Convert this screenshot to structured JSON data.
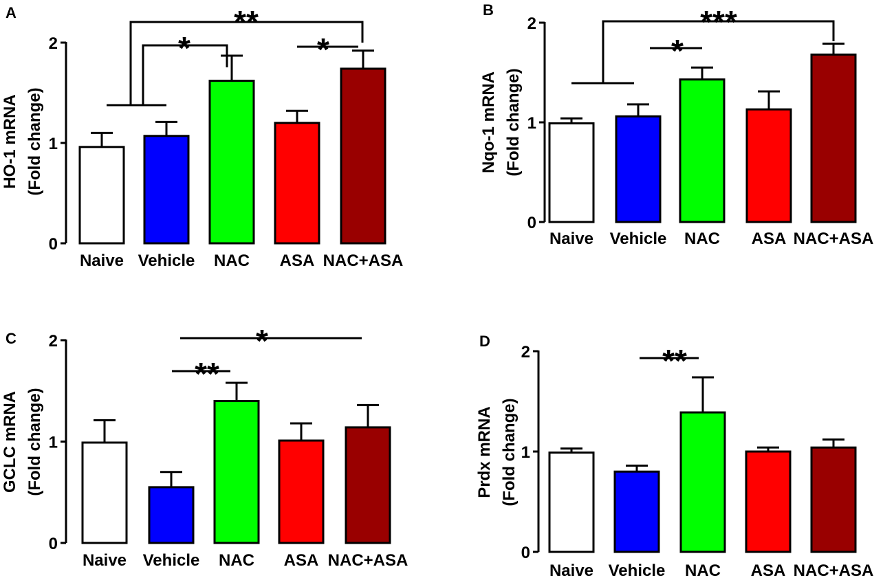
{
  "figure": {
    "colors": {
      "Naive": "#ffffff",
      "Vehicle": "#0000ff",
      "NAC": "#00ff00",
      "ASA": "#ff0000",
      "NAC+ASA": "#990000"
    }
  },
  "chart_data": [
    {
      "panel": "A",
      "type": "bar",
      "ylabel_lines": [
        "HO-1 mRNA",
        "(Fold change)"
      ],
      "categories": [
        "Naive",
        "Vehicle",
        "NAC",
        "ASA",
        "NAC+ASA"
      ],
      "values": [
        0.96,
        1.07,
        1.62,
        1.2,
        1.74
      ],
      "errors": [
        0.14,
        0.14,
        0.25,
        0.12,
        0.18
      ],
      "ylim": [
        0,
        2
      ],
      "yticks": [
        0,
        1,
        2
      ],
      "significance": [
        {
          "label": "**",
          "from": "Naive-Vehicle",
          "to": "NAC+ASA"
        },
        {
          "label": "*",
          "from": "Naive-Vehicle",
          "to": "NAC"
        },
        {
          "label": "*",
          "from": "ASA",
          "to": "NAC+ASA"
        }
      ]
    },
    {
      "panel": "B",
      "type": "bar",
      "ylabel_lines": [
        "Nqo-1 mRNA",
        "(Fold change)"
      ],
      "categories": [
        "Naive",
        "Vehicle",
        "NAC",
        "ASA",
        "NAC+ASA"
      ],
      "values": [
        0.99,
        1.06,
        1.43,
        1.13,
        1.68
      ],
      "errors": [
        0.05,
        0.12,
        0.12,
        0.18,
        0.11
      ],
      "ylim": [
        0,
        2
      ],
      "yticks": [
        0,
        1,
        2
      ],
      "significance": [
        {
          "label": "***",
          "from": "Naive-Vehicle",
          "to": "NAC+ASA"
        },
        {
          "label": "*",
          "from": "Vehicle",
          "to": "NAC"
        }
      ]
    },
    {
      "panel": "C",
      "type": "bar",
      "ylabel_lines": [
        "GCLC mRNA",
        "(Fold change)"
      ],
      "categories": [
        "Naive",
        "Vehicle",
        "NAC",
        "ASA",
        "NAC+ASA"
      ],
      "values": [
        0.99,
        0.55,
        1.4,
        1.01,
        1.14
      ],
      "errors": [
        0.22,
        0.15,
        0.18,
        0.17,
        0.22
      ],
      "ylim": [
        0,
        2
      ],
      "yticks": [
        0,
        1,
        2
      ],
      "significance": [
        {
          "label": "*",
          "from": "Vehicle",
          "to": "NAC+ASA"
        },
        {
          "label": "**",
          "from": "Vehicle",
          "to": "NAC"
        }
      ]
    },
    {
      "panel": "D",
      "type": "bar",
      "ylabel_lines": [
        "Prdx mRNA",
        "(Fold change)"
      ],
      "categories": [
        "Naive",
        "Vehicle",
        "NAC",
        "ASA",
        "NAC+ASA"
      ],
      "values": [
        0.99,
        0.8,
        1.39,
        1.0,
        1.04
      ],
      "errors": [
        0.04,
        0.06,
        0.35,
        0.04,
        0.08
      ],
      "ylim": [
        0,
        2
      ],
      "yticks": [
        0,
        1,
        2
      ],
      "significance": [
        {
          "label": "**",
          "from": "Vehicle",
          "to": "NAC"
        }
      ]
    }
  ]
}
